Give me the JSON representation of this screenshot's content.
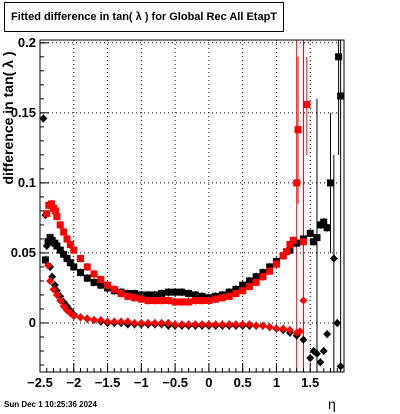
{
  "title": "Fitted difference in tan( λ ) for Global Rec All EtapT",
  "datestamp": "Sun Dec  1 10:25:36 2024",
  "chart_data": {
    "type": "scatter",
    "title": "Fitted difference in tan( λ ) for Global Rec All EtapT",
    "xlabel": "η",
    "ylabel": "difference in tan( λ )",
    "xlim": [
      -2.5,
      2.0
    ],
    "ylim": [
      -0.035,
      0.202
    ],
    "grid": true,
    "x_ticks": [
      -2.5,
      -2,
      -1.5,
      -1,
      -0.5,
      0,
      0.5,
      1,
      1.5
    ],
    "x_tick_labels": [
      "−2.5",
      "−2",
      "−1.5",
      "−1",
      "−0.5",
      "0",
      "0.5",
      "1",
      "1.5"
    ],
    "y_ticks": [
      0,
      0.05,
      0.1,
      0.15,
      0.2
    ],
    "y_tick_labels": [
      "0",
      "0.05",
      "0.1",
      "0.15",
      "0.2"
    ],
    "series": [
      {
        "color": "#000000",
        "marker": "square",
        "points": [
          [
            -2.42,
            0.045
          ],
          [
            -2.38,
            0.058
          ],
          [
            -2.35,
            0.061
          ],
          [
            -2.32,
            0.059
          ],
          [
            -2.28,
            0.057
          ],
          [
            -2.25,
            0.055
          ],
          [
            -2.2,
            0.052
          ],
          [
            -2.15,
            0.049
          ],
          [
            -2.1,
            0.046
          ],
          [
            -2.05,
            0.043
          ],
          [
            -2.0,
            0.04
          ],
          [
            -1.9,
            0.036
          ],
          [
            -1.8,
            0.032
          ],
          [
            -1.7,
            0.029
          ],
          [
            -1.6,
            0.027
          ],
          [
            -1.5,
            0.025
          ],
          [
            -1.4,
            0.023
          ],
          [
            -1.3,
            0.022
          ],
          [
            -1.2,
            0.021
          ],
          [
            -1.1,
            0.021
          ],
          [
            -1.0,
            0.02
          ],
          [
            -0.9,
            0.02
          ],
          [
            -0.8,
            0.02
          ],
          [
            -0.7,
            0.021
          ],
          [
            -0.6,
            0.022
          ],
          [
            -0.5,
            0.022
          ],
          [
            -0.4,
            0.022
          ],
          [
            -0.3,
            0.021
          ],
          [
            -0.2,
            0.02
          ],
          [
            -0.1,
            0.019
          ],
          [
            0.0,
            0.018
          ],
          [
            0.1,
            0.019
          ],
          [
            0.2,
            0.02
          ],
          [
            0.3,
            0.022
          ],
          [
            0.4,
            0.024
          ],
          [
            0.5,
            0.027
          ],
          [
            0.6,
            0.03
          ],
          [
            0.7,
            0.033
          ],
          [
            0.8,
            0.036
          ],
          [
            0.9,
            0.04
          ],
          [
            1.0,
            0.044
          ],
          [
            1.1,
            0.048
          ],
          [
            1.2,
            0.052
          ],
          [
            1.3,
            0.057
          ],
          [
            1.4,
            0.06
          ],
          [
            1.5,
            0.064
          ],
          [
            1.55,
            0.058
          ],
          [
            1.6,
            0.061
          ],
          [
            1.65,
            0.07
          ],
          [
            1.7,
            0.072
          ],
          [
            1.75,
            0.068
          ],
          [
            1.8,
            0.1
          ],
          [
            1.92,
            0.19
          ],
          [
            1.95,
            0.162
          ]
        ]
      },
      {
        "color": "#000000",
        "marker": "diamond",
        "points": [
          [
            -2.45,
            0.146
          ],
          [
            -2.42,
            0.077
          ],
          [
            -2.4,
            0.055
          ],
          [
            -2.35,
            0.04
          ],
          [
            -2.32,
            0.033
          ],
          [
            -2.28,
            0.027
          ],
          [
            -2.25,
            0.023
          ],
          [
            -2.2,
            0.019
          ],
          [
            -2.15,
            0.015
          ],
          [
            -2.1,
            0.012
          ],
          [
            -2.05,
            0.009
          ],
          [
            -2.0,
            0.006
          ],
          [
            -1.9,
            0.004
          ],
          [
            -1.8,
            0.003
          ],
          [
            -1.7,
            0.002
          ],
          [
            -1.6,
            0.001
          ],
          [
            -1.5,
            0.0
          ],
          [
            -1.4,
            0.0
          ],
          [
            -1.3,
            0.0
          ],
          [
            -1.2,
            -0.001
          ],
          [
            -1.1,
            -0.001
          ],
          [
            -1.0,
            -0.001
          ],
          [
            -0.9,
            -0.001
          ],
          [
            -0.8,
            -0.001
          ],
          [
            -0.7,
            -0.001
          ],
          [
            -0.6,
            -0.002
          ],
          [
            -0.5,
            -0.002
          ],
          [
            -0.4,
            -0.002
          ],
          [
            -0.3,
            -0.002
          ],
          [
            -0.2,
            -0.002
          ],
          [
            -0.1,
            -0.002
          ],
          [
            0.0,
            -0.002
          ],
          [
            0.1,
            -0.002
          ],
          [
            0.2,
            -0.002
          ],
          [
            0.3,
            -0.002
          ],
          [
            0.4,
            -0.002
          ],
          [
            0.5,
            -0.002
          ],
          [
            0.6,
            -0.002
          ],
          [
            0.7,
            -0.002
          ],
          [
            0.8,
            -0.002
          ],
          [
            0.9,
            -0.003
          ],
          [
            1.0,
            -0.004
          ],
          [
            1.1,
            -0.005
          ],
          [
            1.2,
            -0.007
          ],
          [
            1.3,
            -0.009
          ],
          [
            1.4,
            -0.012
          ],
          [
            1.5,
            -0.025
          ],
          [
            1.55,
            -0.02
          ],
          [
            1.6,
            -0.022
          ],
          [
            1.65,
            -0.028
          ],
          [
            1.7,
            -0.02
          ],
          [
            1.75,
            -0.008
          ],
          [
            1.85,
            0.046
          ],
          [
            1.9,
            0.0
          ],
          [
            1.95,
            -0.031
          ]
        ]
      },
      {
        "color": "#ff0000",
        "marker": "square",
        "points": [
          [
            -2.4,
            0.078
          ],
          [
            -2.37,
            0.084
          ],
          [
            -2.33,
            0.085
          ],
          [
            -2.3,
            0.082
          ],
          [
            -2.27,
            0.08
          ],
          [
            -2.25,
            0.076
          ],
          [
            -2.2,
            0.07
          ],
          [
            -2.15,
            0.065
          ],
          [
            -2.1,
            0.06
          ],
          [
            -2.05,
            0.056
          ],
          [
            -2.0,
            0.052
          ],
          [
            -1.9,
            0.046
          ],
          [
            -1.8,
            0.04
          ],
          [
            -1.7,
            0.035
          ],
          [
            -1.6,
            0.031
          ],
          [
            -1.5,
            0.027
          ],
          [
            -1.4,
            0.024
          ],
          [
            -1.3,
            0.021
          ],
          [
            -1.2,
            0.019
          ],
          [
            -1.1,
            0.018
          ],
          [
            -1.0,
            0.017
          ],
          [
            -0.9,
            0.016
          ],
          [
            -0.8,
            0.016
          ],
          [
            -0.7,
            0.016
          ],
          [
            -0.6,
            0.016
          ],
          [
            -0.5,
            0.015
          ],
          [
            -0.4,
            0.015
          ],
          [
            -0.3,
            0.015
          ],
          [
            -0.2,
            0.016
          ],
          [
            -0.1,
            0.016
          ],
          [
            0.0,
            0.016
          ],
          [
            0.1,
            0.017
          ],
          [
            0.2,
            0.018
          ],
          [
            0.3,
            0.019
          ],
          [
            0.4,
            0.021
          ],
          [
            0.5,
            0.023
          ],
          [
            0.6,
            0.026
          ],
          [
            0.7,
            0.029
          ],
          [
            0.8,
            0.033
          ],
          [
            0.9,
            0.037
          ],
          [
            1.0,
            0.042
          ],
          [
            1.1,
            0.048
          ],
          [
            1.15,
            0.051
          ],
          [
            1.2,
            0.056
          ],
          [
            1.25,
            0.059
          ],
          [
            1.3,
            0.1
          ],
          [
            1.32,
            0.138
          ],
          [
            1.4,
            0.058
          ],
          [
            1.45,
            0.156
          ]
        ]
      },
      {
        "color": "#ff0000",
        "marker": "diamond",
        "points": [
          [
            -2.38,
            0.041
          ],
          [
            -2.35,
            0.03
          ],
          [
            -2.3,
            0.024
          ],
          [
            -2.25,
            0.02
          ],
          [
            -2.2,
            0.016
          ],
          [
            -2.15,
            0.012
          ],
          [
            -2.1,
            0.009
          ],
          [
            -2.05,
            0.007
          ],
          [
            -2.0,
            0.005
          ],
          [
            -1.9,
            0.004
          ],
          [
            -1.8,
            0.003
          ],
          [
            -1.7,
            0.002
          ],
          [
            -1.6,
            0.002
          ],
          [
            -1.5,
            0.001
          ],
          [
            -1.4,
            0.001
          ],
          [
            -1.3,
            0.001
          ],
          [
            -1.2,
            0.001
          ],
          [
            -1.1,
            0.0
          ],
          [
            -1.0,
            0.0
          ],
          [
            -0.9,
            0.0
          ],
          [
            -0.8,
            0.0
          ],
          [
            -0.7,
            0.0
          ],
          [
            -0.6,
            0.0
          ],
          [
            -0.5,
            -0.001
          ],
          [
            -0.4,
            -0.001
          ],
          [
            -0.3,
            -0.001
          ],
          [
            -0.2,
            -0.001
          ],
          [
            -0.1,
            -0.001
          ],
          [
            0.0,
            -0.001
          ],
          [
            0.1,
            -0.001
          ],
          [
            0.2,
            -0.001
          ],
          [
            0.3,
            -0.001
          ],
          [
            0.4,
            -0.001
          ],
          [
            0.5,
            -0.001
          ],
          [
            0.6,
            -0.001
          ],
          [
            0.7,
            -0.002
          ],
          [
            0.8,
            -0.002
          ],
          [
            0.9,
            -0.003
          ],
          [
            1.0,
            -0.004
          ],
          [
            1.1,
            -0.004
          ],
          [
            1.2,
            -0.005
          ],
          [
            1.3,
            -0.007
          ],
          [
            1.35,
            -0.006
          ],
          [
            1.4,
            0.016
          ]
        ]
      }
    ],
    "error_bars": [
      {
        "x": 1.3,
        "ylow": -0.035,
        "yhigh": 0.202,
        "color": "#ff0000"
      },
      {
        "x": 1.32,
        "ylow": 0.085,
        "yhigh": 0.19,
        "color": "#ff0000"
      },
      {
        "x": 1.4,
        "ylow": -0.035,
        "yhigh": 0.202,
        "color": "#ff0000"
      },
      {
        "x": 1.45,
        "ylow": 0.12,
        "yhigh": 0.19,
        "color": "#ff0000"
      },
      {
        "x": 1.6,
        "ylow": -0.035,
        "yhigh": 0.16,
        "color": "#000000"
      },
      {
        "x": 1.8,
        "ylow": 0.05,
        "yhigh": 0.15,
        "color": "#000000"
      },
      {
        "x": 1.85,
        "ylow": -0.035,
        "yhigh": 0.12,
        "color": "#000000"
      },
      {
        "x": 1.92,
        "ylow": 0.12,
        "yhigh": 0.202,
        "color": "#000000"
      },
      {
        "x": 1.95,
        "ylow": -0.035,
        "yhigh": 0.202,
        "color": "#000000"
      }
    ]
  }
}
